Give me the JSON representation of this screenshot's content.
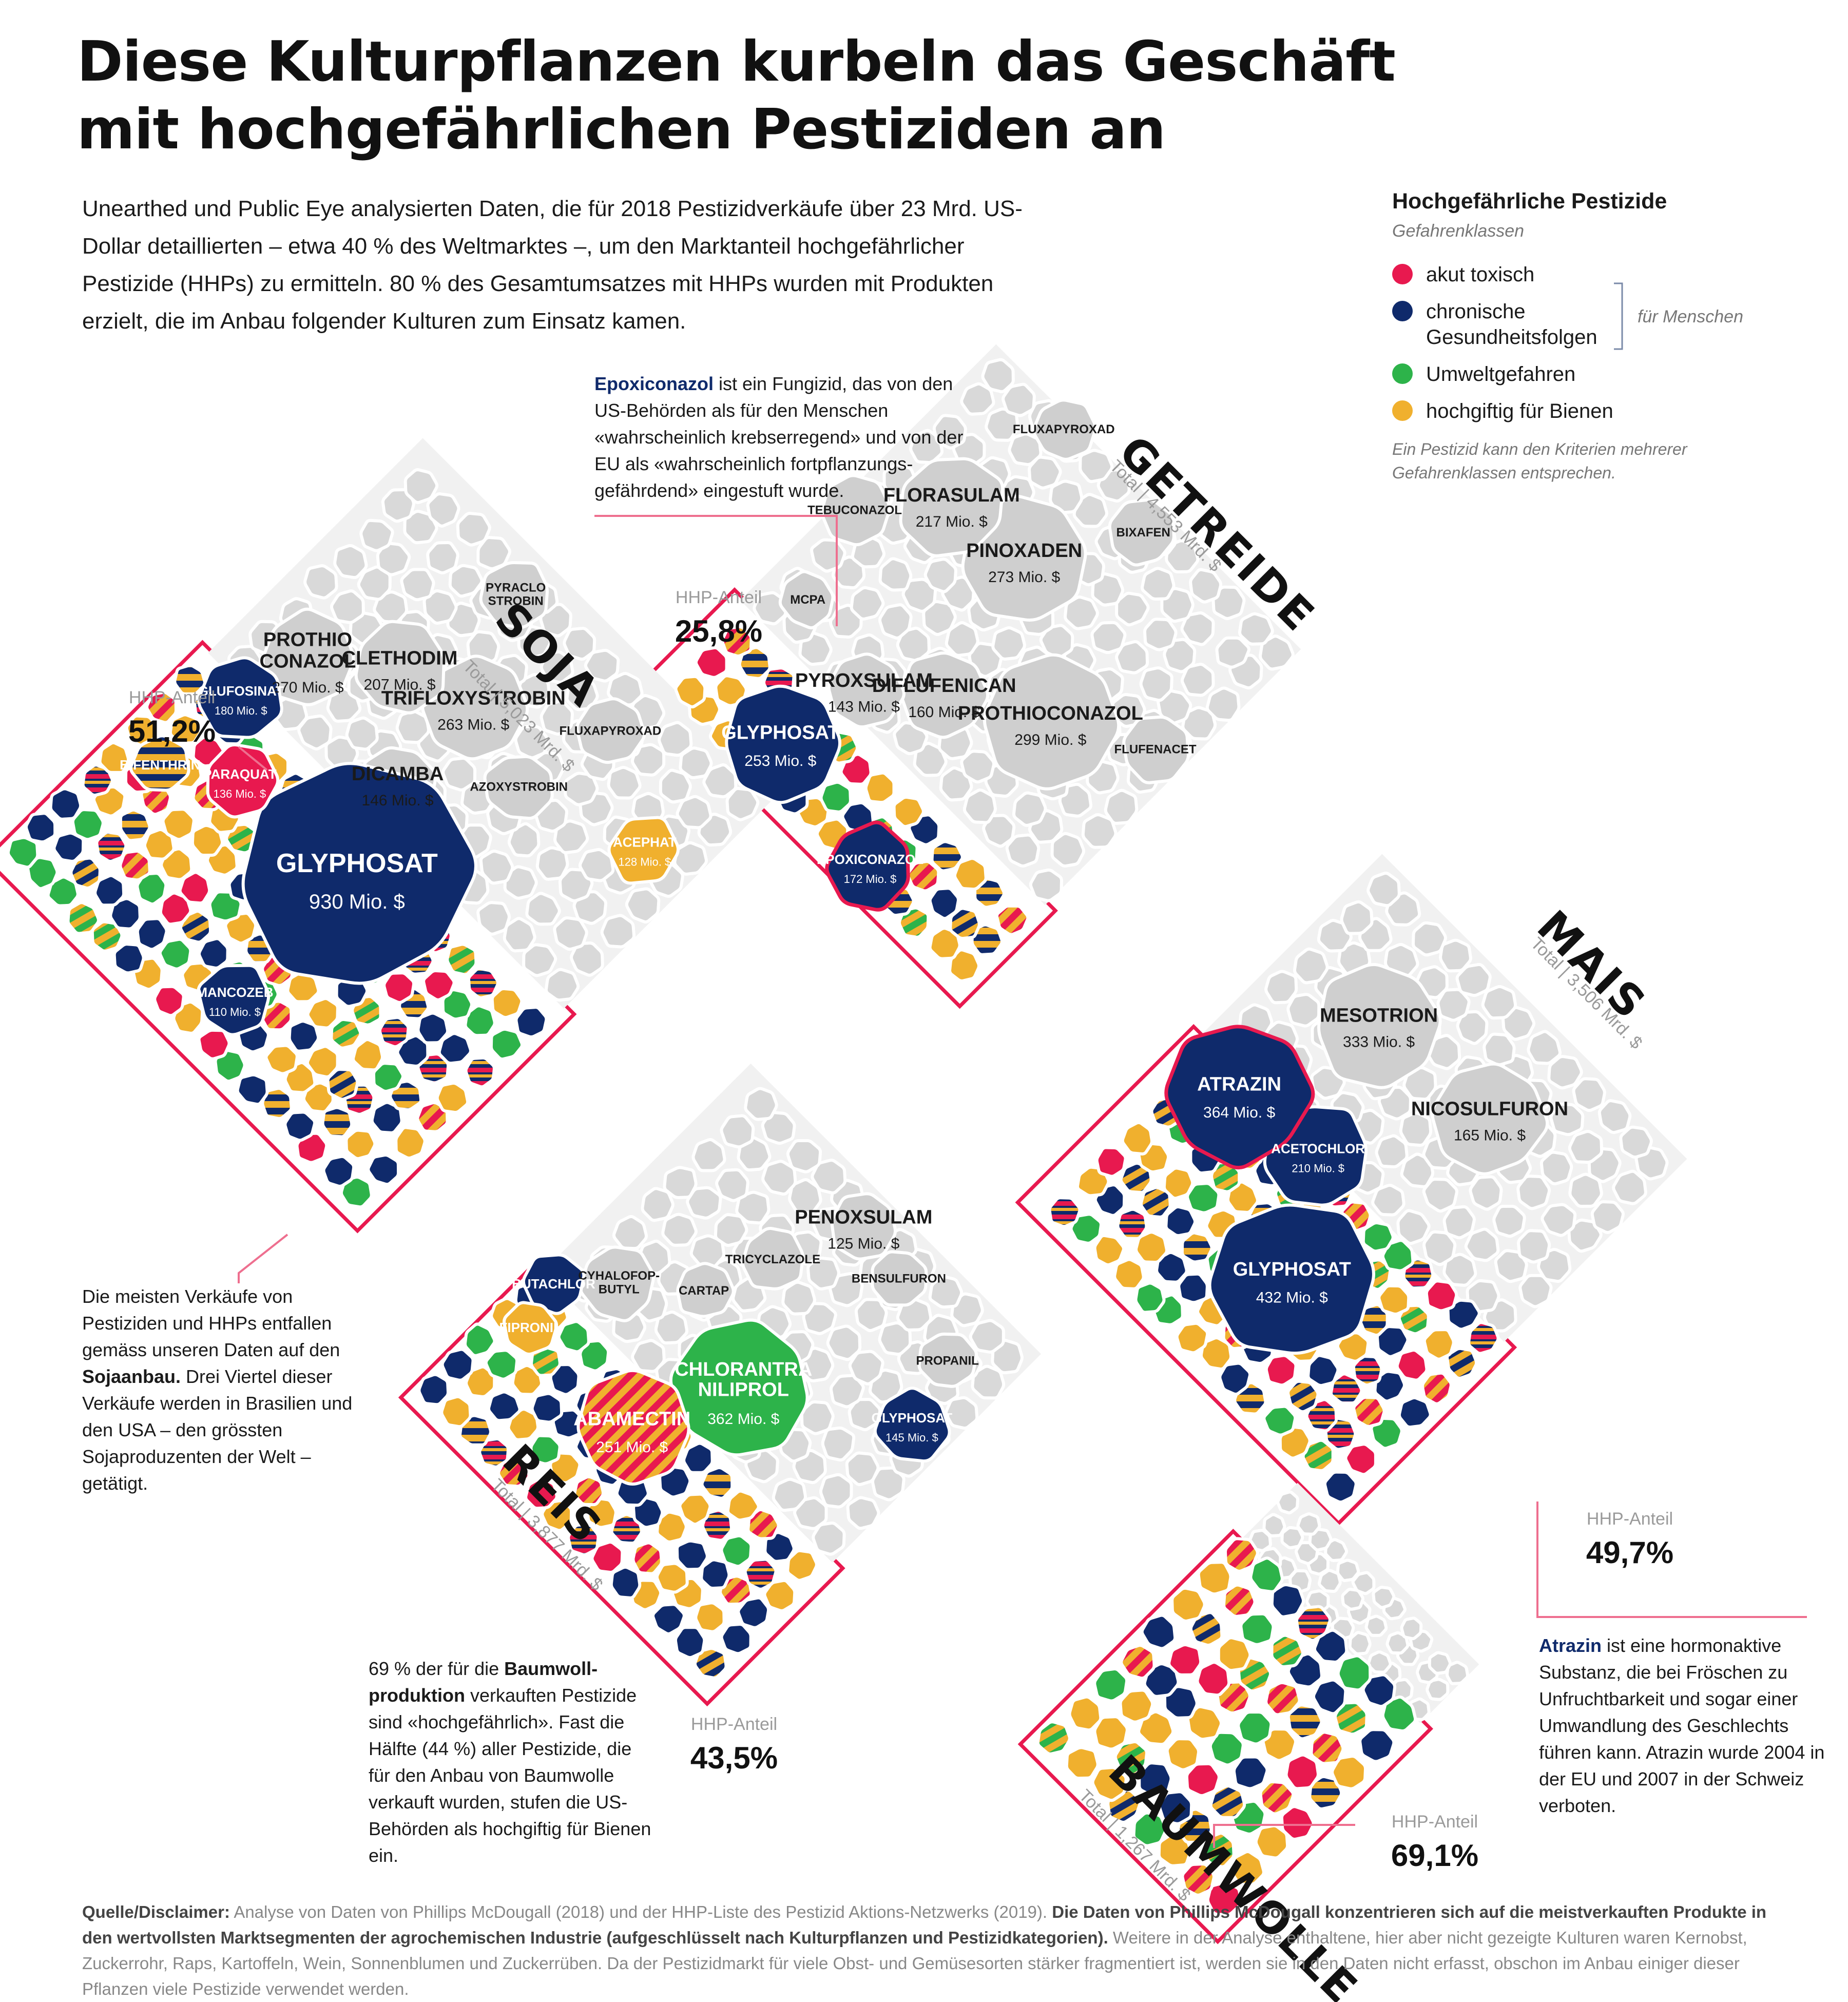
{
  "title": "Diese Kulturpflanzen kurbeln das Geschäft mit hochgefährlichen Pestiziden an",
  "intro": "Unearthed und Public Eye analysierten Daten, die für 2018 Pestizidverkäufe über 23 Mrd. US-Dollar detaillierten – etwa 40 % des Weltmarktes –, um den Marktanteil hochgefährlicher Pestizide (HHPs) zu ermitteln. 80 % des Gesamtumsatzes mit HHPs wurden mit Produkten erzielt, die im Anbau folgender Kulturen zum Einsatz kamen.",
  "legend": {
    "title": "Hochgefährliche Pestizide",
    "subtitle": "Gefahrenklassen",
    "items": [
      {
        "label": "akut toxisch",
        "color": "#e8194f"
      },
      {
        "label": "chronische Gesundheitsfolgen",
        "color": "#0f2a6b"
      },
      {
        "label": "Umweltgefahren",
        "color": "#2db34a"
      },
      {
        "label": "hochgiftig für Bienen",
        "color": "#f0b02e"
      }
    ],
    "bracket_label": "für Menschen",
    "note": "Ein Pestizid kann den Kriterien mehrerer Gefahrenklassen entsprechen."
  },
  "hhp_label": "HHP-Anteil",
  "notes": {
    "epoxiconazol": {
      "term": "Epoxiconazol",
      "text": " ist ein Fungizid, das von den US-Behörden als für den Menschen «wahrscheinlich krebserregend» und von der EU als «wahrscheinlich fortpflanzungs­gefährdend» eingestuft wurde."
    },
    "soja": {
      "pre": "Die meisten Verkäufe von Pestiziden und HHPs entfallen gemäss unseren Daten auf den ",
      "term": "Sojaanbau.",
      "post": " Drei Viertel dieser Verkäufe werden in Brasilien und den USA – den grössten Sojaproduzenten der Welt – getätigt."
    },
    "baumwolle": {
      "pre": "69 % der für die ",
      "term": "Baumwoll­produktion",
      "post": " verkauften Pestizide sind «hochgefährlich». Fast die Hälfte (44 %) aller Pestizide, die für den Anbau von Baumwolle verkauft wurden, stufen die US-Behörden als hochgiftig für Bienen ein."
    },
    "atrazin": {
      "term": "Atrazin",
      "text": " ist eine hormonaktive Substanz, die bei Fröschen zu Unfruchtbarkeit und sogar einer Umwandlung des Geschlechts führen kann. Atrazin wurde 2004 in der EU und 2007 in der Schweiz verboten."
    }
  },
  "source": {
    "label": "Quelle/Disclaimer:",
    "text1": " Analyse von Daten von Phillips McDougall (2018) und der HHP-Liste des Pestizid Aktions-Netzwerks (2019). ",
    "bold": "Die Daten von Phillips McDougall konzentrieren sich auf die meistverkauften Produkte in den wertvollsten Marktsegmenten der agrochemischen Industrie (aufgeschlüsselt nach Kulturpflanzen und Pestizidkategorien).",
    "text2": " Weitere in der Analyse enthaltene, hier aber nicht gezeigte Kulturen waren Kernobst, Zuckerrohr, Raps, Kartoffeln, Wein, Sonnenblumen und Zuckerrüben. Da der Pestizidmarkt für viele Obst- und Gemüsesorten stärker fragmentiert ist, werden sie in den Daten nicht erfasst, obschon im Anbau einiger dieser Pflanzen viele Pestizide verwendet werden."
  },
  "colors": {
    "hhp_frame": "#e8194f",
    "other": "#d9d9d9",
    "red": "#e8194f",
    "navy": "#0f2a6b",
    "green": "#2db34a",
    "yellow": "#f0b02e"
  },
  "chart_data": {
    "type": "voronoi treemap",
    "unit": "Mio. $",
    "crops": [
      {
        "name": "SOJA",
        "total": "Total | 5,023 Mrd. $",
        "hhp_share": "51,2%",
        "hhp": [
          {
            "name": "GLYPHOSAT",
            "value": "930 Mio. $",
            "v": 930,
            "hazard": "navy"
          },
          {
            "name": "PARAQUAT",
            "value": "136 Mio. $",
            "v": 136,
            "hazard": "red"
          },
          {
            "name": "GLUFOSINAT",
            "value": "180 Mio. $",
            "v": 180,
            "hazard": "navy"
          },
          {
            "name": "MANCOZEB",
            "value": "110 Mio. $",
            "v": 110,
            "hazard": "navy"
          },
          {
            "name": "ACEPHAT",
            "value": "128 Mio. $",
            "v": 128,
            "hazard": "yellow"
          },
          {
            "name": "BIFENTHRIN",
            "value": "",
            "v": 0,
            "hazard": "navy+yellow"
          }
        ],
        "other": [
          {
            "name": "DICAMBA",
            "value": "146 Mio. $",
            "v": 146
          },
          {
            "name": "TRIFLOXYSTROBIN",
            "value": "263 Mio. $",
            "v": 263
          },
          {
            "name": "CLETHODIM",
            "value": "207 Mio. $",
            "v": 207
          },
          {
            "name": "PROTHIO CONAZOL",
            "value": "270 Mio. $",
            "v": 270
          },
          {
            "name": "FLUXAPYROXAD",
            "value": "",
            "v": 0
          },
          {
            "name": "AZOXYSTROBIN",
            "value": "",
            "v": 0
          },
          {
            "name": "PYRACLO STROBIN",
            "value": "",
            "v": 0
          }
        ]
      },
      {
        "name": "GETREIDE",
        "total": "Total | 4,553 Mrd. $",
        "hhp_share": "25,8%",
        "hhp": [
          {
            "name": "EPOXICONAZOL",
            "value": "172 Mio. $",
            "v": 172,
            "hazard": "navy"
          },
          {
            "name": "GLYPHOSAT",
            "value": "253 Mio. $",
            "v": 253,
            "hazard": "navy"
          }
        ],
        "other": [
          {
            "name": "PROTHIOCONAZOL",
            "value": "299 Mio. $",
            "v": 299
          },
          {
            "name": "DIFLUFENICAN",
            "value": "160 Mio. $",
            "v": 160
          },
          {
            "name": "PINOXADEN",
            "value": "273 Mio. $",
            "v": 273
          },
          {
            "name": "PYROXSULAM",
            "value": "143 Mio. $",
            "v": 143
          },
          {
            "name": "FLORASULAM",
            "value": "217 Mio. $",
            "v": 217
          },
          {
            "name": "FLUFENACET",
            "value": "",
            "v": 0
          },
          {
            "name": "BIXAFEN",
            "value": "",
            "v": 0
          },
          {
            "name": "FLUXAPYROXAD",
            "value": "",
            "v": 0
          },
          {
            "name": "MCPA",
            "value": "",
            "v": 0
          },
          {
            "name": "TEBUCONAZOL",
            "value": "",
            "v": 0
          }
        ]
      },
      {
        "name": "MAIS",
        "total": "Total | 3,506 Mrd. $",
        "hhp_share": "49,7%",
        "hhp": [
          {
            "name": "GLYPHOSAT",
            "value": "432 Mio. $",
            "v": 432,
            "hazard": "navy"
          },
          {
            "name": "ACETOCHLOR",
            "value": "210 Mio. $",
            "v": 210,
            "hazard": "navy"
          },
          {
            "name": "ATRAZIN",
            "value": "364 Mio. $",
            "v": 364,
            "hazard": "navy"
          }
        ],
        "other": [
          {
            "name": "NICOSULFURON",
            "value": "165 Mio. $",
            "v": 165
          },
          {
            "name": "MESOTRION",
            "value": "333 Mio. $",
            "v": 333
          }
        ]
      },
      {
        "name": "REIS",
        "total": "Total | 3,877 Mrd. $",
        "hhp_share": "43,5%",
        "hhp": [
          {
            "name": "GLYPHOSAT",
            "value": "145 Mio. $",
            "v": 145,
            "hazard": "navy"
          },
          {
            "name": "CHLORANTRA NILIPROL",
            "value": "362 Mio. $",
            "v": 362,
            "hazard": "green"
          },
          {
            "name": "ABAMECTIN",
            "value": "251 Mio. $",
            "v": 251,
            "hazard": "red+yellow"
          },
          {
            "name": "BUTACHLOR",
            "value": "",
            "v": 0,
            "hazard": "navy"
          },
          {
            "name": "FIPRONIL",
            "value": "",
            "v": 0,
            "hazard": "yellow"
          }
        ],
        "other": [
          {
            "name": "PENOXSULAM",
            "value": "125 Mio. $",
            "v": 125
          },
          {
            "name": "PROPANIL",
            "value": "",
            "v": 0
          },
          {
            "name": "BENSULFURON",
            "value": "",
            "v": 0
          },
          {
            "name": "TRICYCLAZOLE",
            "value": "",
            "v": 0
          },
          {
            "name": "CARTAP",
            "value": "",
            "v": 0
          },
          {
            "name": "CYHALOFOP- BUTYL",
            "value": "",
            "v": 0
          }
        ]
      },
      {
        "name": "BAUMWOLLE",
        "total": "Total | 1,267 Mrd. $",
        "hhp_share": "69,1%",
        "hhp": [],
        "other": []
      }
    ]
  }
}
